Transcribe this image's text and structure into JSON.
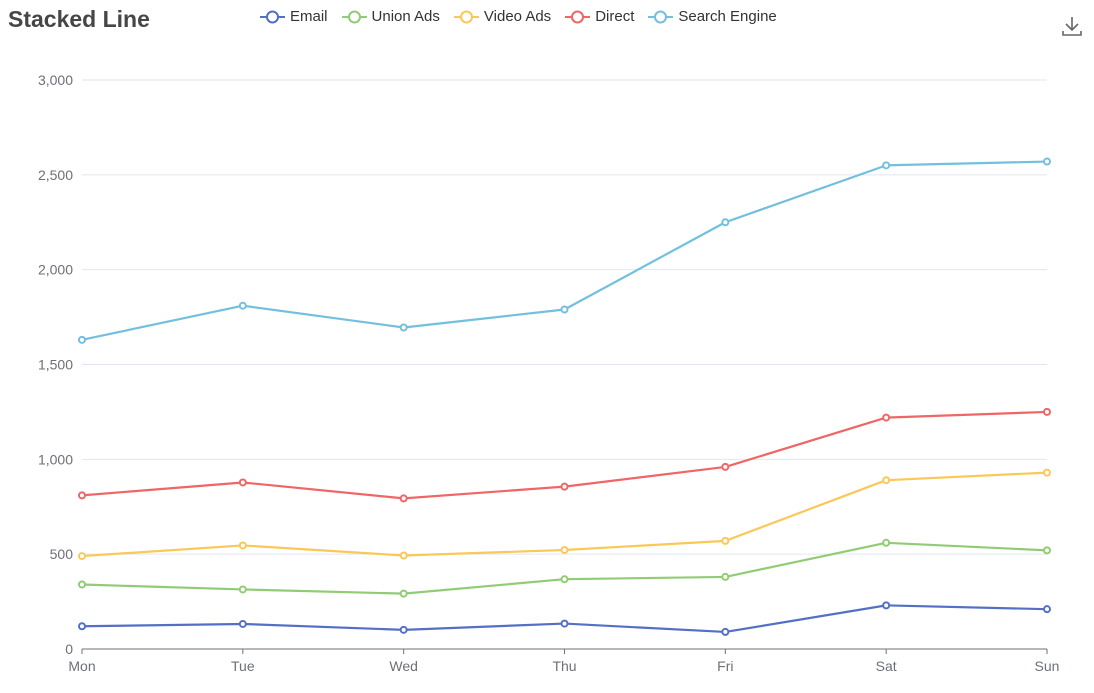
{
  "title": "Stacked Line",
  "colors": {
    "Email": "#5470c6",
    "Union Ads": "#91cc75",
    "Video Ads": "#fac858",
    "Direct": "#ee6666",
    "Search Engine": "#73c0de"
  },
  "icons": {
    "download": "download-icon"
  },
  "chart_data": {
    "type": "line",
    "stacked": true,
    "title": "Stacked Line",
    "categories": [
      "Mon",
      "Tue",
      "Wed",
      "Thu",
      "Fri",
      "Sat",
      "Sun"
    ],
    "yticks": [
      "0",
      "500",
      "1,000",
      "1,500",
      "2,000",
      "2,500",
      "3,000"
    ],
    "ylim": [
      0,
      3000
    ],
    "grid": true,
    "legend_position": "top-center",
    "series": [
      {
        "name": "Email",
        "values": [
          120,
          132,
          101,
          134,
          90,
          230,
          210
        ]
      },
      {
        "name": "Union Ads",
        "values": [
          220,
          182,
          191,
          234,
          290,
          330,
          310
        ]
      },
      {
        "name": "Video Ads",
        "values": [
          150,
          232,
          201,
          154,
          190,
          330,
          410
        ]
      },
      {
        "name": "Direct",
        "values": [
          320,
          332,
          301,
          334,
          390,
          330,
          320
        ]
      },
      {
        "name": "Search Engine",
        "values": [
          820,
          932,
          901,
          934,
          1290,
          1330,
          1320
        ]
      }
    ]
  }
}
